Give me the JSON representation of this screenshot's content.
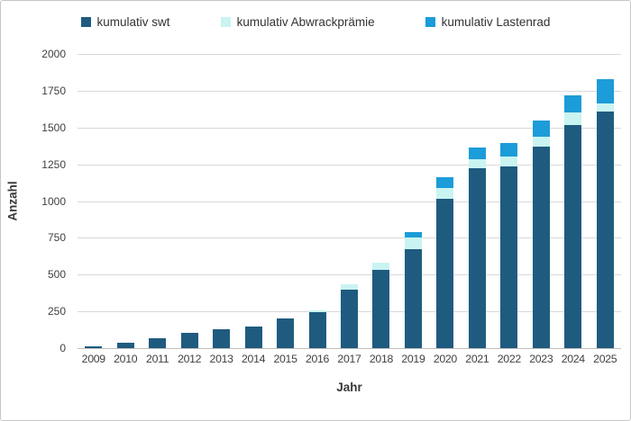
{
  "frame": {
    "background": "#ffffff",
    "border_color": "#c6c6c6",
    "gridline_color": "#d9d9d9",
    "axis_line_color": "#bfbfbf",
    "tick_text_color": "#404040"
  },
  "chart_data": {
    "type": "bar",
    "stacked": true,
    "title": "",
    "xlabel": "Jahr",
    "ylabel": "Anzahl",
    "ylim": [
      0,
      2000
    ],
    "yticks": [
      0,
      250,
      500,
      750,
      1000,
      1250,
      1500,
      1750,
      2000
    ],
    "grid": true,
    "legend_position": "top",
    "categories": [
      "2009",
      "2010",
      "2011",
      "2012",
      "2013",
      "2014",
      "2015",
      "2016",
      "2017",
      "2018",
      "2019",
      "2020",
      "2021",
      "2022",
      "2023",
      "2024",
      "2025"
    ],
    "series": [
      {
        "name": "kumulativ swt",
        "color": "#1f5b7f",
        "values": [
          10,
          35,
          70,
          105,
          130,
          150,
          200,
          245,
          400,
          530,
          675,
          1015,
          1225,
          1235,
          1370,
          1520,
          1610
        ]
      },
      {
        "name": "kumulativ Abwrackprämie",
        "color": "#c9f4f1",
        "values": [
          0,
          0,
          0,
          0,
          0,
          0,
          0,
          10,
          35,
          50,
          75,
          75,
          60,
          70,
          70,
          80,
          55
        ]
      },
      {
        "name": "kumulativ Lastenrad",
        "color": "#1c9cd8",
        "values": [
          0,
          0,
          0,
          0,
          0,
          0,
          0,
          0,
          0,
          0,
          40,
          70,
          80,
          90,
          110,
          120,
          165
        ]
      }
    ]
  }
}
